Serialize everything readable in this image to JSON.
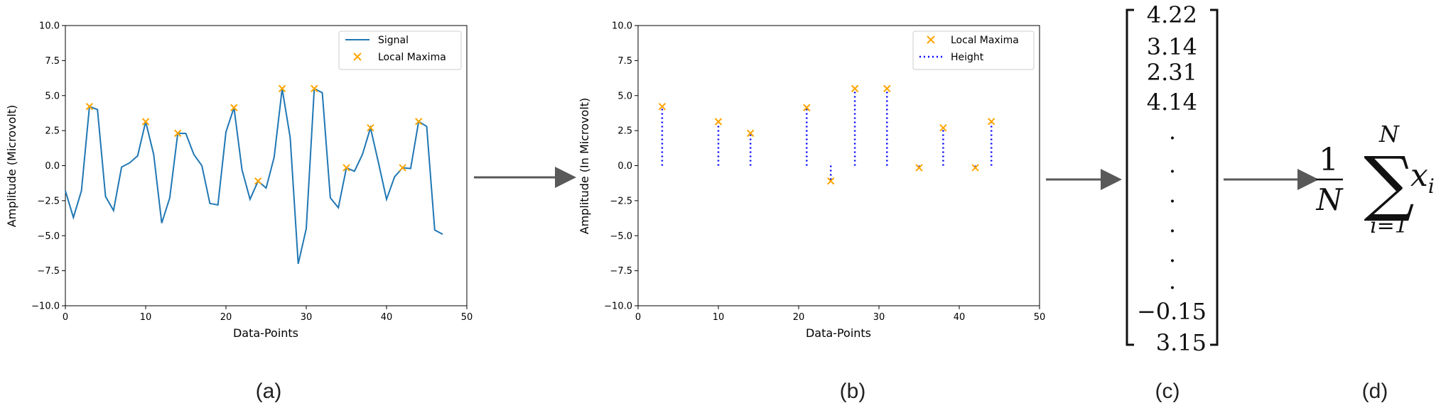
{
  "chart_data": [
    {
      "type": "line",
      "panel": "(a)",
      "xlabel": "Data-Points",
      "ylabel": "Amplitude (Microvolt)",
      "xlim": [
        0,
        50
      ],
      "ylim": [
        -10,
        10
      ],
      "xticks": [
        "0",
        "10",
        "20",
        "30",
        "40",
        "50"
      ],
      "yticks": [
        "10.0",
        "7.5",
        "5.0",
        "2.5",
        "0.0",
        "−2.5",
        "−5.0",
        "−7.5",
        "−10.0"
      ],
      "legend": [
        "Signal",
        "Local Maxima"
      ],
      "legend_loc": "upper-right",
      "series": [
        {
          "name": "Signal",
          "color": "#1f77b4",
          "x": [
            0,
            1,
            2,
            3,
            4,
            5,
            6,
            7,
            8,
            9,
            10,
            11,
            12,
            13,
            14,
            15,
            16,
            17,
            18,
            19,
            20,
            21,
            22,
            23,
            24,
            25,
            26,
            27,
            28,
            29,
            30,
            31,
            32,
            33,
            34,
            35,
            36,
            37,
            38,
            39,
            40,
            41,
            42,
            43,
            44,
            45,
            46,
            47
          ],
          "y": [
            -1.8,
            -3.7,
            -1.8,
            4.22,
            4.0,
            -2.2,
            -3.2,
            -0.1,
            0.2,
            0.7,
            3.14,
            0.8,
            -4.1,
            -2.3,
            2.31,
            2.3,
            0.8,
            0.0,
            -2.7,
            -2.8,
            2.4,
            4.14,
            -0.3,
            -2.4,
            -1.1,
            -1.6,
            0.6,
            5.5,
            2.0,
            -7.0,
            -4.5,
            5.5,
            5.2,
            -2.3,
            -3.0,
            -0.15,
            -0.4,
            0.8,
            2.7,
            0.2,
            -2.4,
            -0.8,
            -0.15,
            -0.2,
            3.15,
            2.8,
            -4.6,
            -4.9
          ]
        },
        {
          "name": "Local Maxima",
          "color": "#ffa500",
          "marker": "x",
          "x": [
            3,
            10,
            14,
            21,
            24,
            27,
            31,
            35,
            38,
            42,
            44
          ],
          "y": [
            4.22,
            3.14,
            2.31,
            4.14,
            -1.1,
            5.5,
            5.5,
            -0.15,
            2.7,
            -0.15,
            3.15
          ]
        }
      ]
    },
    {
      "type": "scatter",
      "panel": "(b)",
      "xlabel": "Data-Points",
      "ylabel": "Amplitude (In Microvolt)",
      "xlim": [
        0,
        50
      ],
      "ylim": [
        -10,
        10
      ],
      "xticks": [
        "0",
        "10",
        "20",
        "30",
        "40",
        "50"
      ],
      "yticks": [
        "10.0",
        "7.5",
        "5.0",
        "2.5",
        "0.0",
        "−2.5",
        "−5.0",
        "−7.5",
        "−10.0"
      ],
      "legend": [
        "Local Maxima",
        "Height"
      ],
      "legend_loc": "upper-right",
      "series": [
        {
          "name": "Local Maxima",
          "color": "#ffa500",
          "marker": "x",
          "x": [
            3,
            10,
            14,
            21,
            24,
            27,
            31,
            35,
            38,
            42,
            44
          ],
          "y": [
            4.22,
            3.14,
            2.31,
            4.14,
            -1.1,
            5.5,
            5.5,
            -0.15,
            2.7,
            -0.15,
            3.15
          ]
        },
        {
          "name": "Height",
          "color": "#0000ff",
          "style": "dotted-vlines",
          "x": [
            3,
            10,
            14,
            21,
            24,
            27,
            31,
            35,
            38,
            42,
            44
          ],
          "y": [
            4.22,
            3.14,
            2.31,
            4.14,
            -1.1,
            5.5,
            5.5,
            -0.15,
            2.7,
            -0.15,
            3.15
          ]
        }
      ]
    }
  ],
  "vector": {
    "top": [
      "4.22",
      "3.14",
      "2.31",
      "4.14"
    ],
    "dots": [
      ".",
      ".",
      ".",
      ".",
      ".",
      "."
    ],
    "bottom": [
      "−0.15",
      "3.15"
    ]
  },
  "formula": {
    "numerator": "1",
    "denominator": "N",
    "sum_upper": "N",
    "sum_symbol": "∑",
    "sum_lower": "i=1",
    "term": "x",
    "subscript": "i"
  },
  "captions": [
    "(a)",
    "(b)",
    "(c)",
    "(d)"
  ],
  "colors": {
    "arrow": "#595959",
    "signal": "#1f77b4",
    "maxima": "#ffa500",
    "height": "#0000ff"
  }
}
